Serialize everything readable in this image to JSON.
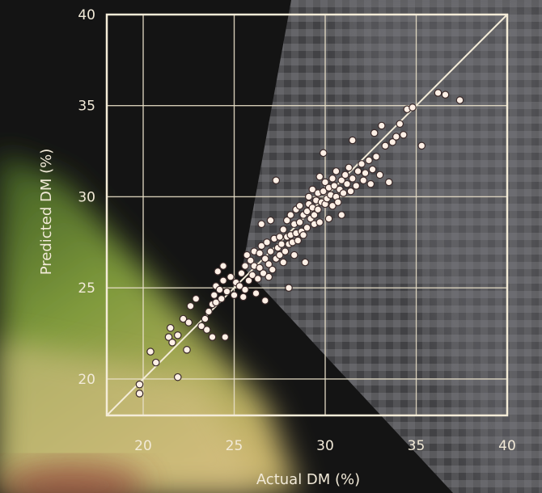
{
  "chart_data": {
    "type": "scatter",
    "title": "",
    "xlabel": "Actual DM (%)",
    "ylabel": "Predicted DM (%)",
    "xlim": [
      18,
      40
    ],
    "ylim": [
      18,
      40
    ],
    "xticks": [
      20,
      25,
      30,
      35,
      40
    ],
    "yticks": [
      20,
      25,
      30,
      35,
      40
    ],
    "grid": true,
    "reference_line": "1:1",
    "colors": {
      "frame": "#f4ecd8",
      "grid": "#e8dfc8",
      "point_fill": "#fff0e6",
      "point_stroke": "#3a2a2a"
    },
    "points": [
      [
        19.8,
        19.7
      ],
      [
        19.8,
        19.2
      ],
      [
        20.4,
        21.5
      ],
      [
        20.7,
        20.9
      ],
      [
        21.4,
        22.3
      ],
      [
        21.5,
        22.8
      ],
      [
        21.6,
        22.0
      ],
      [
        21.9,
        22.4
      ],
      [
        21.9,
        20.1
      ],
      [
        22.2,
        23.3
      ],
      [
        22.4,
        21.6
      ],
      [
        22.5,
        23.1
      ],
      [
        22.6,
        24.0
      ],
      [
        22.9,
        24.4
      ],
      [
        23.2,
        22.9
      ],
      [
        23.4,
        23.3
      ],
      [
        23.5,
        22.7
      ],
      [
        23.6,
        23.7
      ],
      [
        23.8,
        24.1
      ],
      [
        23.8,
        22.3
      ],
      [
        23.9,
        24.6
      ],
      [
        24.0,
        25.1
      ],
      [
        24.0,
        24.2
      ],
      [
        24.1,
        25.9
      ],
      [
        24.2,
        24.9
      ],
      [
        24.3,
        24.4
      ],
      [
        24.4,
        26.2
      ],
      [
        24.4,
        25.4
      ],
      [
        24.5,
        22.3
      ],
      [
        24.6,
        24.8
      ],
      [
        24.8,
        25.6
      ],
      [
        25.0,
        24.6
      ],
      [
        25.1,
        25.3
      ],
      [
        25.3,
        25.1
      ],
      [
        25.4,
        25.8
      ],
      [
        25.5,
        24.5
      ],
      [
        25.6,
        26.2
      ],
      [
        25.6,
        24.9
      ],
      [
        25.7,
        26.8
      ],
      [
        25.8,
        25.4
      ],
      [
        25.9,
        26.5
      ],
      [
        26.0,
        25.7
      ],
      [
        26.1,
        27.0
      ],
      [
        26.1,
        26.2
      ],
      [
        26.2,
        24.7
      ],
      [
        26.3,
        25.5
      ],
      [
        26.4,
        26.9
      ],
      [
        26.4,
        26.1
      ],
      [
        26.5,
        27.3
      ],
      [
        26.5,
        28.5
      ],
      [
        26.6,
        25.8
      ],
      [
        26.7,
        26.6
      ],
      [
        26.7,
        24.3
      ],
      [
        26.8,
        27.5
      ],
      [
        26.9,
        26.3
      ],
      [
        26.9,
        25.6
      ],
      [
        27.0,
        27.0
      ],
      [
        27.0,
        28.7
      ],
      [
        27.1,
        26.0
      ],
      [
        27.2,
        27.7
      ],
      [
        27.3,
        26.6
      ],
      [
        27.3,
        30.9
      ],
      [
        27.4,
        27.2
      ],
      [
        27.5,
        27.8
      ],
      [
        27.5,
        26.8
      ],
      [
        27.6,
        27.4
      ],
      [
        27.7,
        28.2
      ],
      [
        27.7,
        26.4
      ],
      [
        27.8,
        27.0
      ],
      [
        27.9,
        28.7
      ],
      [
        27.9,
        27.8
      ],
      [
        28.0,
        27.4
      ],
      [
        28.0,
        25.0
      ],
      [
        28.1,
        29.0
      ],
      [
        28.1,
        27.9
      ],
      [
        28.2,
        27.5
      ],
      [
        28.3,
        28.5
      ],
      [
        28.3,
        26.8
      ],
      [
        28.4,
        29.3
      ],
      [
        28.4,
        28.0
      ],
      [
        28.5,
        27.6
      ],
      [
        28.6,
        28.6
      ],
      [
        28.6,
        29.5
      ],
      [
        28.7,
        28.1
      ],
      [
        28.8,
        27.9
      ],
      [
        28.8,
        29.0
      ],
      [
        28.9,
        26.4
      ],
      [
        29.0,
        29.2
      ],
      [
        29.0,
        28.3
      ],
      [
        29.1,
        30.0
      ],
      [
        29.1,
        29.6
      ],
      [
        29.2,
        28.8
      ],
      [
        29.3,
        29.4
      ],
      [
        29.3,
        30.4
      ],
      [
        29.4,
        29.0
      ],
      [
        29.4,
        28.5
      ],
      [
        29.5,
        29.8
      ],
      [
        29.6,
        30.2
      ],
      [
        29.6,
        29.3
      ],
      [
        29.7,
        31.1
      ],
      [
        29.7,
        28.6
      ],
      [
        29.8,
        29.7
      ],
      [
        29.9,
        30.3
      ],
      [
        29.9,
        32.4
      ],
      [
        30.0,
        29.6
      ],
      [
        30.0,
        30.8
      ],
      [
        30.1,
        29.9
      ],
      [
        30.2,
        30.5
      ],
      [
        30.2,
        28.8
      ],
      [
        30.3,
        30.1
      ],
      [
        30.4,
        31.0
      ],
      [
        30.4,
        29.5
      ],
      [
        30.5,
        30.6
      ],
      [
        30.6,
        30.0
      ],
      [
        30.6,
        31.4
      ],
      [
        30.7,
        29.7
      ],
      [
        30.8,
        30.4
      ],
      [
        30.9,
        30.9
      ],
      [
        30.9,
        29.0
      ],
      [
        31.0,
        30.2
      ],
      [
        31.1,
        31.2
      ],
      [
        31.2,
        30.7
      ],
      [
        31.3,
        31.6
      ],
      [
        31.4,
        30.3
      ],
      [
        31.5,
        31.0
      ],
      [
        31.5,
        33.1
      ],
      [
        31.7,
        30.6
      ],
      [
        31.8,
        31.4
      ],
      [
        32.0,
        31.8
      ],
      [
        32.1,
        30.9
      ],
      [
        32.2,
        31.3
      ],
      [
        32.4,
        32.0
      ],
      [
        32.5,
        30.7
      ],
      [
        32.6,
        31.5
      ],
      [
        32.7,
        33.5
      ],
      [
        32.8,
        32.2
      ],
      [
        33.0,
        31.2
      ],
      [
        33.1,
        33.9
      ],
      [
        33.3,
        32.8
      ],
      [
        33.5,
        30.8
      ],
      [
        33.7,
        33.0
      ],
      [
        33.9,
        33.3
      ],
      [
        34.1,
        34.0
      ],
      [
        34.3,
        33.4
      ],
      [
        34.5,
        34.8
      ],
      [
        34.8,
        34.9
      ],
      [
        35.3,
        32.8
      ],
      [
        36.2,
        35.7
      ],
      [
        36.6,
        35.6
      ],
      [
        37.4,
        35.3
      ]
    ]
  }
}
